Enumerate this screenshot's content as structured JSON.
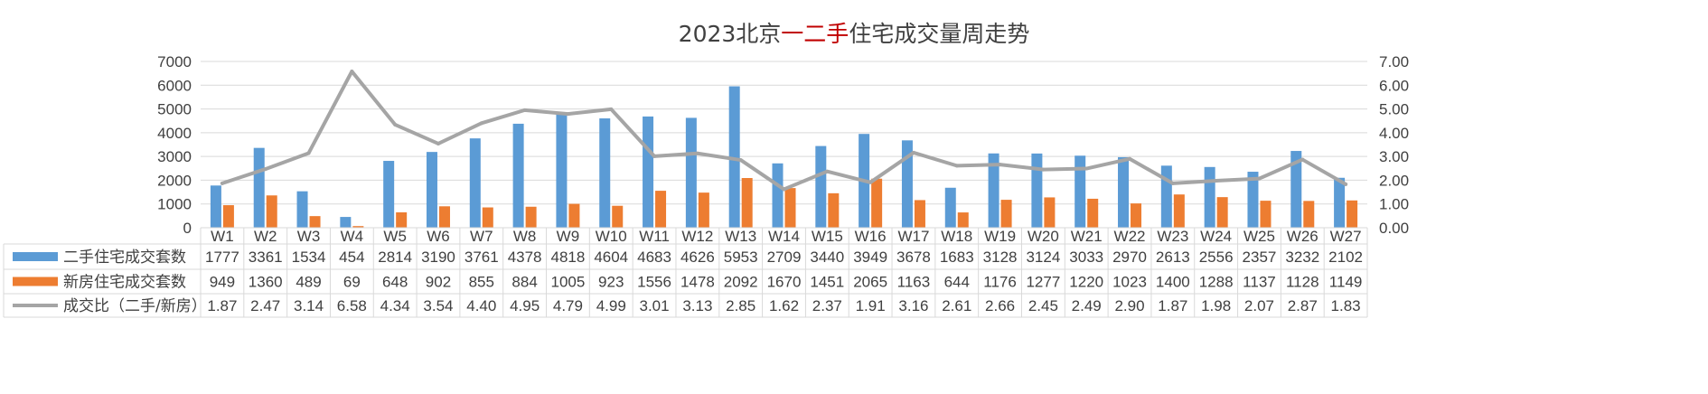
{
  "chart_data": {
    "type": "bar",
    "title_parts": [
      {
        "text": "2023北京",
        "color": "#404040"
      },
      {
        "text": "一二手",
        "color": "#c00000"
      },
      {
        "text": "住宅成交量周走势",
        "color": "#404040"
      }
    ],
    "categories": [
      "W1",
      "W2",
      "W3",
      "W4",
      "W5",
      "W6",
      "W7",
      "W8",
      "W9",
      "W10",
      "W11",
      "W12",
      "W13",
      "W14",
      "W15",
      "W16",
      "W17",
      "W18",
      "W19",
      "W20",
      "W21",
      "W22",
      "W23",
      "W24",
      "W25",
      "W26",
      "W27"
    ],
    "series": [
      {
        "name": "二手住宅成交套数",
        "type": "bar",
        "axis": "left",
        "color": "#5b9bd5",
        "values": [
          1777,
          3361,
          1534,
          454,
          2814,
          3190,
          3761,
          4378,
          4818,
          4604,
          4683,
          4626,
          5953,
          2709,
          3440,
          3949,
          3678,
          1683,
          3128,
          3124,
          3033,
          2970,
          2613,
          2556,
          2357,
          3232,
          2102
        ]
      },
      {
        "name": "新房住宅成交套数",
        "type": "bar",
        "axis": "left",
        "color": "#ed7d31",
        "values": [
          949,
          1360,
          489,
          69,
          648,
          902,
          855,
          884,
          1005,
          923,
          1556,
          1478,
          2092,
          1670,
          1451,
          2065,
          1163,
          644,
          1176,
          1277,
          1220,
          1023,
          1400,
          1288,
          1137,
          1128,
          1149
        ]
      },
      {
        "name": "成交比（二手/新房）",
        "type": "line",
        "axis": "right",
        "color": "#a5a5a5",
        "values": [
          "1.87",
          "2.47",
          "3.14",
          "6.58",
          "4.34",
          "3.54",
          "4.40",
          "4.95",
          "4.79",
          "4.99",
          "3.01",
          "3.13",
          "2.85",
          "1.62",
          "2.37",
          "1.91",
          "3.16",
          "2.61",
          "2.66",
          "2.45",
          "2.49",
          "2.90",
          "1.87",
          "1.98",
          "2.07",
          "2.87",
          "1.83"
        ]
      }
    ],
    "y_left": {
      "min": 0,
      "max": 7000,
      "ticks": [
        "0",
        "1000",
        "2000",
        "3000",
        "4000",
        "5000",
        "6000",
        "7000"
      ]
    },
    "y_right": {
      "min": 0,
      "max": 7,
      "ticks": [
        "0.00",
        "1.00",
        "2.00",
        "3.00",
        "4.00",
        "5.00",
        "6.00",
        "7.00"
      ]
    },
    "legend": "data-table",
    "grid": true
  }
}
